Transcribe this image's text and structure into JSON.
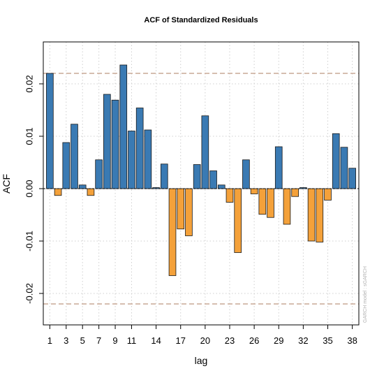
{
  "chart_data": {
    "type": "bar",
    "title": "ACF of Standardized Residuals",
    "xlabel": "lag",
    "ylabel": "ACF",
    "watermark": "GARCH model : sGARCH",
    "lags": [
      1,
      2,
      3,
      4,
      5,
      6,
      7,
      8,
      9,
      10,
      11,
      12,
      13,
      14,
      15,
      16,
      17,
      18,
      19,
      20,
      21,
      22,
      23,
      24,
      25,
      26,
      27,
      28,
      29,
      30,
      31,
      32,
      33,
      34,
      35,
      36,
      37,
      38
    ],
    "values": [
      0.022,
      -0.0013,
      0.0088,
      0.0123,
      0.0007,
      -0.0013,
      0.0055,
      0.018,
      0.0169,
      0.0236,
      0.011,
      0.0154,
      0.0112,
      0.0002,
      0.0047,
      -0.0166,
      -0.0077,
      -0.009,
      0.0046,
      0.0139,
      0.0034,
      0.0007,
      -0.0026,
      -0.0122,
      0.0055,
      -0.001,
      -0.0049,
      -0.0055,
      0.008,
      -0.0068,
      -0.0015,
      0.0002,
      -0.01,
      -0.0102,
      -0.0022,
      0.0105,
      0.0079,
      0.0039
    ],
    "x_ticks": [
      1,
      3,
      5,
      7,
      9,
      11,
      14,
      17,
      20,
      23,
      26,
      29,
      32,
      35,
      38
    ],
    "y_ticks": [
      -0.02,
      -0.01,
      0.0,
      0.01,
      0.02
    ],
    "y_tick_labels": [
      "-0.02",
      "-0.01",
      "0.00",
      "0.01",
      "0.02"
    ],
    "ylim": [
      -0.026,
      0.028
    ],
    "xlim": [
      0.2,
      38.8
    ],
    "confidence_bounds": [
      0.022,
      -0.022
    ],
    "grid": true,
    "colors": {
      "positive": "#3a7ab3",
      "negative": "#f4a13a",
      "bound_line": "#c9a896",
      "grid": "#cfcfcf",
      "zero_line": "#000000"
    }
  }
}
